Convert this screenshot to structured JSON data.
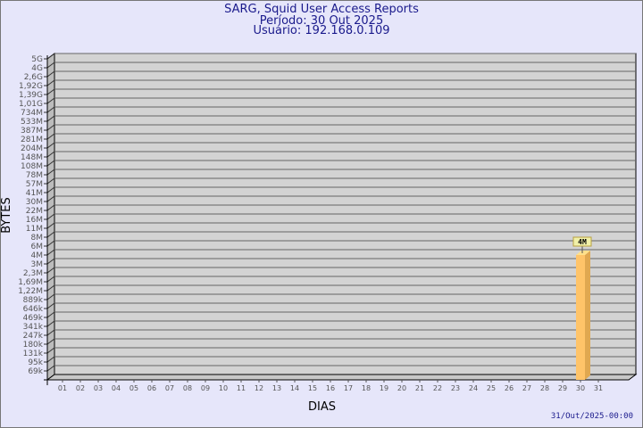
{
  "chart_data": {
    "type": "bar",
    "title": "SARG, Squid User Access Reports",
    "subtitle": [
      "Período: 30 Out 2025",
      "Usuário: 192.168.0.109"
    ],
    "xlabel": "DIAS",
    "ylabel": "BYTES",
    "y_scale": "log",
    "y_ticks": [
      "5G",
      "4G",
      "2,6G",
      "1,92G",
      "1,39G",
      "1,01G",
      "734M",
      "533M",
      "387M",
      "281M",
      "204M",
      "148M",
      "108M",
      "78M",
      "57M",
      "41M",
      "30M",
      "22M",
      "16M",
      "11M",
      "8M",
      "6M",
      "4M",
      "3M",
      "2,3M",
      "1,69M",
      "1,22M",
      "889k",
      "646k",
      "469k",
      "341k",
      "247k",
      "180k",
      "131k",
      "95k",
      "69k"
    ],
    "categories": [
      "01",
      "02",
      "03",
      "04",
      "05",
      "06",
      "07",
      "08",
      "09",
      "10",
      "11",
      "12",
      "13",
      "14",
      "15",
      "16",
      "17",
      "18",
      "19",
      "20",
      "21",
      "22",
      "23",
      "24",
      "25",
      "26",
      "27",
      "28",
      "29",
      "30",
      "31"
    ],
    "bars": [
      {
        "day": "30",
        "value": "4M",
        "label": "4M"
      }
    ],
    "grid": true,
    "colors": {
      "bar": "#ffc469",
      "bar_side": "#e0a850",
      "wall": "#d3d3d3",
      "background": "#e6e6fa",
      "title": "#1a1a8c"
    }
  },
  "footer": {
    "timestamp": "31/Out/2025-00:00"
  }
}
